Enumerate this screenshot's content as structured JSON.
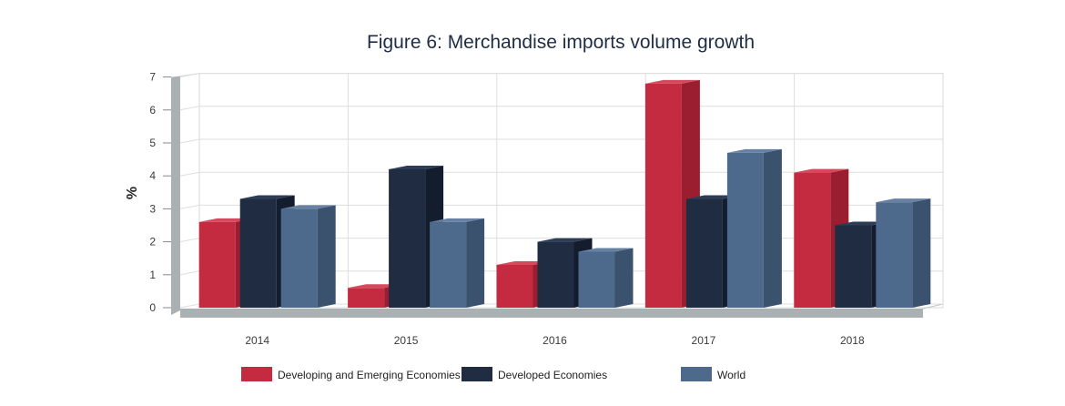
{
  "chart_data": {
    "type": "bar",
    "title": "Figure 6: Merchandise imports volume growth",
    "xlabel": "",
    "ylabel": "%",
    "categories": [
      "2014",
      "2015",
      "2016",
      "2017",
      "2018"
    ],
    "ylim": [
      0,
      7
    ],
    "yticks": [
      "0",
      "1",
      "2",
      "3",
      "4",
      "5",
      "6",
      "7"
    ],
    "grid": true,
    "legend_position": "bottom",
    "series": [
      {
        "name": "Developing and Emerging Economies",
        "values": [
          2.6,
          0.6,
          1.3,
          6.8,
          4.1
        ],
        "color": "#c42a40",
        "side": "#9b1e30",
        "top": "#d5495c"
      },
      {
        "name": "Developed Economies",
        "values": [
          3.3,
          4.2,
          2.0,
          3.3,
          2.5
        ],
        "color": "#1f2c42",
        "side": "#141d2e",
        "top": "#2e3d56"
      },
      {
        "name": "World",
        "values": [
          3.0,
          2.6,
          1.7,
          4.7,
          3.2
        ],
        "color": "#4d6a8c",
        "side": "#3a526e",
        "top": "#6681a3"
      }
    ]
  }
}
